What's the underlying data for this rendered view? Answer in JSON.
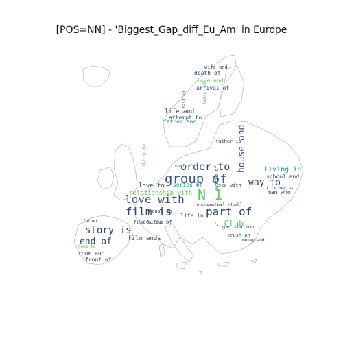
{
  "title": "[POS=NN] - 'Biggest_Gap_diff_Eu_Am' in Europe",
  "palette": [
    "#440154",
    "#3b528b",
    "#21918c",
    "#5ec962",
    "#fde725",
    "#31688e",
    "#35b779"
  ],
  "words": [
    {
      "t": "group of",
      "size": 19,
      "color": "#3b528b"
    },
    {
      "t": "order to",
      "size": 15,
      "color": "#31446b"
    },
    {
      "t": "love with",
      "size": 16,
      "color": "#3b528b"
    },
    {
      "t": "film is",
      "size": 16,
      "color": "#31446b"
    },
    {
      "t": "N 1",
      "size": 20,
      "color": "#5ec962"
    },
    {
      "t": "part of",
      "size": 16,
      "color": "#31446b"
    },
    {
      "t": "story is",
      "size": 14,
      "color": "#31446b"
    },
    {
      "t": "end of",
      "size": 13,
      "color": "#31446b"
    },
    {
      "t": "way to",
      "size": 13,
      "color": "#31446b"
    },
    {
      "t": "house and",
      "size": 13,
      "color": "#3b528b"
    },
    {
      "t": "s Club",
      "size": 12,
      "color": "#5ec962"
    },
    {
      "t": "living in",
      "size": 10,
      "color": "#21918c"
    },
    {
      "t": "school and",
      "size": 8,
      "color": "#31446b"
    },
    {
      "t": "man who",
      "size": 8,
      "color": "#31446b"
    },
    {
      "t": "love to",
      "size": 9,
      "color": "#31446b"
    },
    {
      "t": "series of",
      "size": 8,
      "color": "#21918c"
    },
    {
      "t": "relationship with",
      "size": 9,
      "color": "#5ec962"
    },
    {
      "t": "film ends",
      "size": 9,
      "color": "#31446b"
    },
    {
      "t": "room and",
      "size": 8,
      "color": "#31446b"
    },
    {
      "t": "front of",
      "size": 8,
      "color": "#31446b"
    },
    {
      "t": "life and",
      "size": 9,
      "color": "#31446b"
    },
    {
      "t": "father and",
      "size": 8,
      "color": "#21918c"
    },
    {
      "t": "attempt to",
      "size": 8,
      "color": "#31446b"
    },
    {
      "t": "love and",
      "size": 8,
      "color": "#5ec962"
    },
    {
      "t": "wife and",
      "size": 7,
      "color": "#31446b"
    },
    {
      "t": "death of",
      "size": 8,
      "color": "#31446b"
    },
    {
      "t": "arrival of",
      "size": 8,
      "color": "#31446b"
    },
    {
      "t": "father is",
      "size": 7,
      "color": "#31446b"
    },
    {
      "t": "course of",
      "size": 8,
      "color": "#31446b"
    },
    {
      "t": "house to",
      "size": 7,
      "color": "#31446b"
    },
    {
      "t": "gas station",
      "size": 7,
      "color": "#31446b"
    },
    {
      "t": "crush on",
      "size": 7,
      "color": "#31446b"
    },
    {
      "t": "animal shall",
      "size": 7,
      "color": "#31446b"
    },
    {
      "t": "life in",
      "size": 8,
      "color": "#31446b"
    },
    {
      "t": "film follows",
      "size": 6,
      "color": "#31446b"
    },
    {
      "t": "movie is",
      "size": 6,
      "color": "#21918c"
    },
    {
      "t": "home to",
      "size": 6,
      "color": "#5ec962"
    },
    {
      "t": "father",
      "size": 6,
      "color": "#31446b"
    },
    {
      "t": "liking to",
      "size": 7,
      "color": "#5ec962"
    },
    {
      "t": "world of",
      "size": 7,
      "color": "#31446b"
    },
    {
      "t": "s bastien",
      "size": 6,
      "color": "#31446b"
    },
    {
      "t": "leader of",
      "size": 6,
      "color": "#5ec962"
    },
    {
      "t": "sex with",
      "size": 7,
      "color": "#31446b"
    },
    {
      "t": "film begins",
      "size": 6,
      "color": "#31446b"
    },
    {
      "t": "money and",
      "size": 6,
      "color": "#31446b"
    },
    {
      "t": "house with",
      "size": 6,
      "color": "#31446b"
    }
  ]
}
